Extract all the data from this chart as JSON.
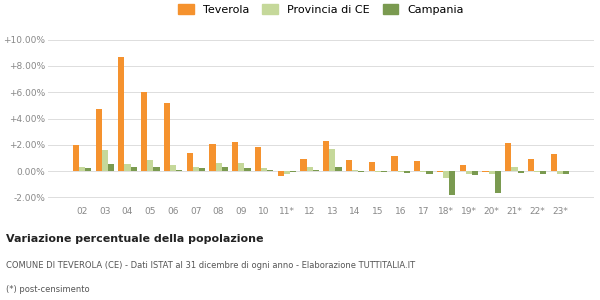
{
  "categories": [
    "02",
    "03",
    "04",
    "05",
    "06",
    "07",
    "08",
    "09",
    "10",
    "11*",
    "12",
    "13",
    "14",
    "15",
    "16",
    "17",
    "18*",
    "19*",
    "20*",
    "21*",
    "22*",
    "23*"
  ],
  "teverola": [
    1.95,
    4.75,
    8.65,
    6.05,
    5.15,
    1.35,
    2.05,
    2.25,
    1.8,
    -0.35,
    0.9,
    2.3,
    0.85,
    0.7,
    1.15,
    0.8,
    -0.1,
    0.5,
    -0.05,
    2.1,
    0.9,
    1.3
  ],
  "provincia_ce": [
    0.3,
    1.6,
    0.55,
    0.85,
    0.5,
    0.35,
    0.65,
    0.6,
    0.25,
    -0.25,
    0.35,
    1.7,
    0.1,
    -0.05,
    -0.05,
    -0.1,
    -0.5,
    -0.2,
    -0.25,
    0.3,
    -0.1,
    -0.2
  ],
  "campania": [
    0.2,
    0.55,
    0.35,
    0.35,
    0.1,
    0.25,
    0.3,
    0.25,
    0.05,
    -0.1,
    0.1,
    0.35,
    -0.05,
    -0.1,
    -0.15,
    -0.2,
    -1.85,
    -0.3,
    -1.65,
    -0.15,
    -0.2,
    -0.25
  ],
  "color_teverola": "#f5922e",
  "color_provincia": "#c5d89a",
  "color_campania": "#7a9a50",
  "title_bold": "Variazione percentuale della popolazione",
  "subtitle": "COMUNE DI TEVEROLA (CE) - Dati ISTAT al 31 dicembre di ogni anno - Elaborazione TUTTITALIA.IT",
  "footnote": "(*) post-censimento",
  "ylim": [
    -2.5,
    10.5
  ],
  "yticks": [
    -2.0,
    0.0,
    2.0,
    4.0,
    6.0,
    8.0,
    10.0
  ],
  "ytick_labels": [
    "-2.00%",
    "0.00%",
    "+2.00%",
    "+4.00%",
    "+6.00%",
    "+8.00%",
    "+10.00%"
  ],
  "bg_color": "#ffffff",
  "grid_color": "#dddddd"
}
